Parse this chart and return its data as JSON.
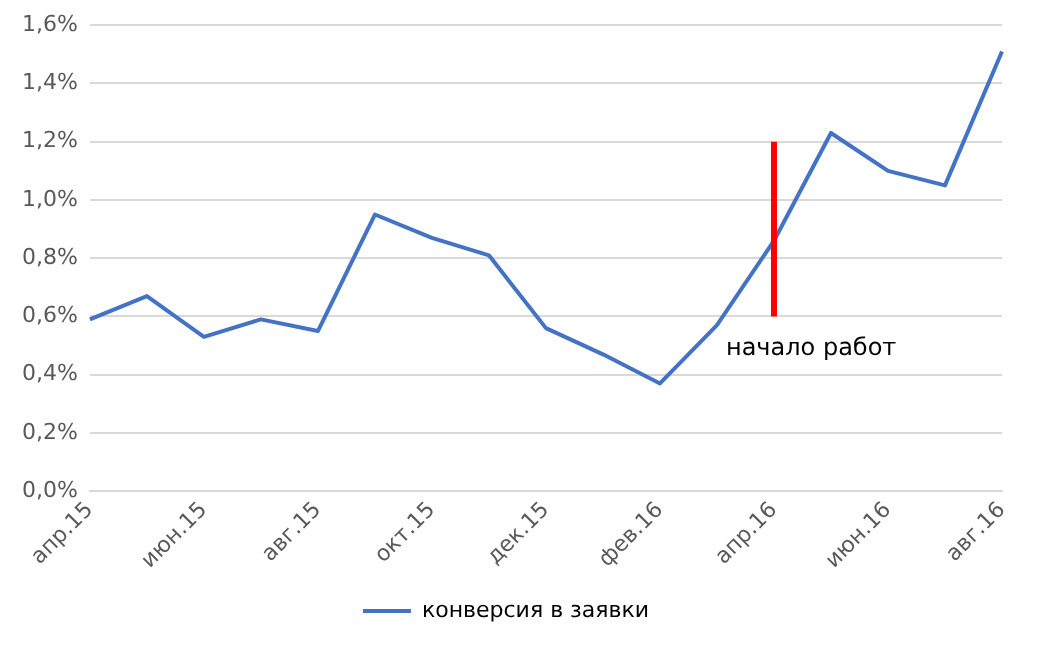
{
  "chart_data": {
    "type": "line",
    "categories": [
      "апр.15",
      null,
      "июн.15",
      null,
      "авг.15",
      null,
      "окт.15",
      null,
      "дек.15",
      null,
      "фев.16",
      null,
      "апр.16",
      null,
      "июн.16",
      null,
      "авг.16"
    ],
    "series": [
      {
        "name": "конверсия в заявки",
        "color": "#4472c4",
        "values": [
          0.59,
          0.67,
          0.53,
          0.59,
          0.55,
          0.95,
          0.87,
          0.81,
          0.56,
          0.47,
          0.37,
          0.57,
          0.86,
          1.23,
          1.1,
          1.05,
          1.51
        ]
      },
      {
        "type": "line",
        "color": "#ff0000",
        "x": [
          "апр.16",
          "апр.16"
        ],
        "values": [
          0.6,
          1.2
        ]
      }
    ],
    "ylim": [
      0,
      1.6
    ],
    "yticks": [
      {
        "value": 0,
        "label": "0,0%"
      },
      {
        "value": 0.2,
        "label": "0,2%"
      },
      {
        "value": 0.4,
        "label": "0,4%"
      },
      {
        "value": 0.6,
        "label": "0,6%"
      },
      {
        "value": 0.8,
        "label": "0,8%"
      },
      {
        "value": 1.0,
        "label": "1,0%"
      },
      {
        "value": 1.2,
        "label": "1,2%"
      },
      {
        "value": 1.4,
        "label": "1,4%"
      },
      {
        "value": 1.6,
        "label": "1,6%"
      }
    ],
    "annotations": [
      "начало работ"
    ],
    "grid": "y",
    "legend": "bottom",
    "marker": "none",
    "line_style": "solid"
  }
}
